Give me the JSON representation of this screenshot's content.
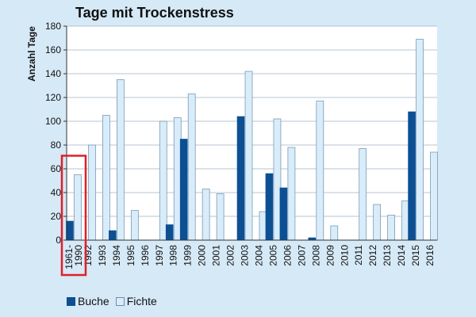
{
  "chart_data": {
    "type": "bar",
    "title": "Tage mit Trockenstress",
    "ylabel": "Anzahl Tage",
    "xlabel": "",
    "ylim": [
      0,
      180
    ],
    "yticks": [
      0,
      20,
      40,
      60,
      80,
      100,
      120,
      140,
      160,
      180
    ],
    "categories": [
      "1961-1990",
      "1992",
      "1993",
      "1994",
      "1995",
      "1996",
      "1997",
      "1998",
      "1999",
      "2000",
      "2001",
      "2002",
      "2003",
      "2004",
      "2005",
      "2006",
      "2007",
      "2008",
      "2009",
      "2010",
      "2011",
      "2012",
      "2013",
      "2014",
      "2015",
      "2016"
    ],
    "series": [
      {
        "name": "Buche",
        "color": "#0d4f93",
        "values": [
          16,
          0,
          0,
          8,
          0,
          0,
          0,
          13,
          85,
          0,
          0,
          0,
          104,
          0,
          56,
          44,
          0,
          2,
          0,
          0,
          0,
          0,
          0,
          0,
          108,
          0
        ]
      },
      {
        "name": "Fichte",
        "color": "#d9ecf9",
        "values": [
          55,
          80,
          105,
          135,
          25,
          0,
          100,
          103,
          123,
          43,
          39,
          0,
          142,
          24,
          102,
          78,
          0,
          117,
          12,
          0,
          77,
          30,
          21,
          33,
          169,
          74
        ]
      }
    ],
    "grid": true,
    "legend_position": "bottom-left",
    "highlight_category": "1961-1990",
    "highlight_color": "#e01f26"
  }
}
